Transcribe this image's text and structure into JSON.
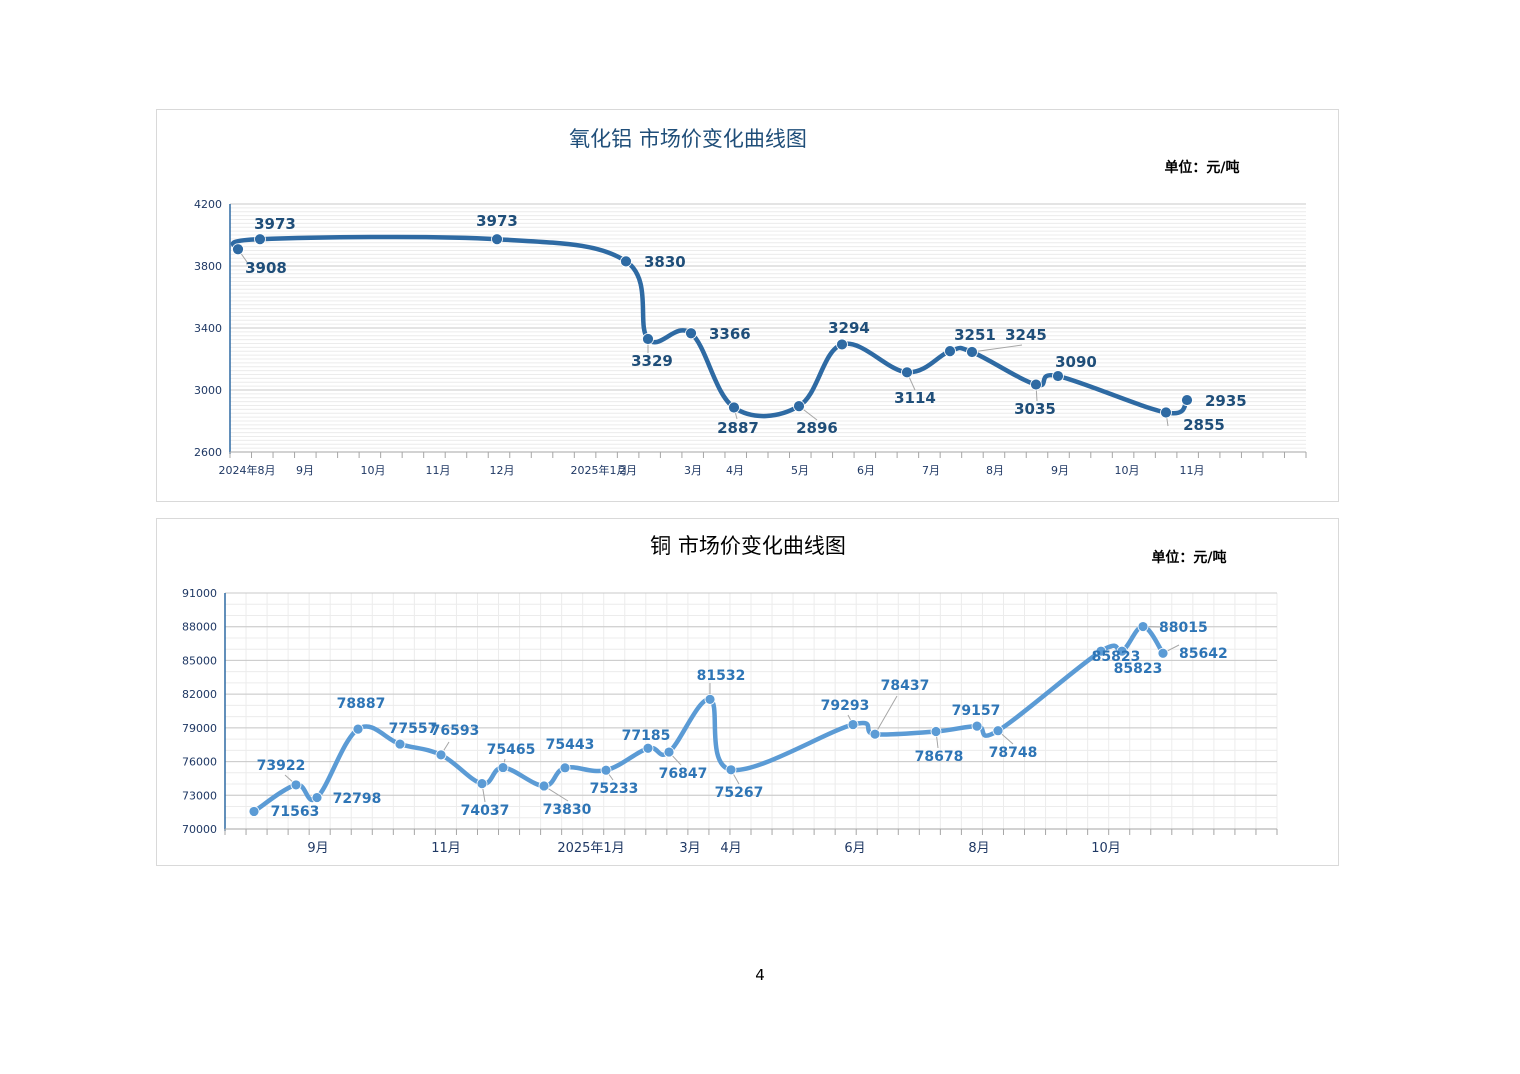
{
  "page_number": "4",
  "chart_data": [
    {
      "type": "line",
      "title": "氧化铝 市场价变化曲线图",
      "unit": "单位：元/吨",
      "ylim": [
        2600,
        4200
      ],
      "yticks": [
        "2600",
        "3000",
        "3400",
        "3800",
        "4200"
      ],
      "xlabels": [
        "2024年8月",
        "9月",
        "10月",
        "11月",
        "12月",
        "2025年1月",
        "2月",
        "3月",
        "4月",
        "5月",
        "6月",
        "7月",
        "8月",
        "9月",
        "10月",
        "11月"
      ],
      "color": "#2e6aa3",
      "label_color": "#1f4e79",
      "values": [
        3908,
        3973,
        3973,
        3830,
        3329,
        3366,
        2887,
        2896,
        3294,
        3114,
        3251,
        3245,
        3035,
        3090,
        2855,
        2935
      ],
      "labels": [
        "3908",
        "3973",
        "3973",
        "3830",
        "3329",
        "3366",
        "2887",
        "2896",
        "3294",
        "3114",
        "3251",
        "3245",
        "3035",
        "3090",
        "2855",
        "2935"
      ]
    },
    {
      "type": "line",
      "title": "铜 市场价变化曲线图",
      "unit": "单位：元/吨",
      "ylim": [
        70000,
        91000
      ],
      "yticks": [
        "70000",
        "73000",
        "76000",
        "79000",
        "82000",
        "85000",
        "88000",
        "91000"
      ],
      "xlabels": [
        "9月",
        "11月",
        "2025年1月",
        "3月",
        "4月",
        "6月",
        "8月",
        "10月"
      ],
      "color": "#5b9bd5",
      "label_color": "#2e75b6",
      "values": [
        71563,
        73922,
        72798,
        78887,
        77557,
        76593,
        74037,
        75465,
        73830,
        75443,
        75233,
        77185,
        76847,
        81532,
        75267,
        79293,
        78437,
        78678,
        79157,
        78748,
        85823,
        85823,
        88015,
        85642
      ],
      "labels": [
        "71563",
        "73922",
        "72798",
        "78887",
        "77557",
        "76593",
        "74037",
        "75465",
        "73830",
        "75443",
        "75233",
        "77185",
        "76847",
        "81532",
        "75267",
        "79293",
        "78437",
        "78678",
        "79157",
        "78748",
        "85823",
        "85823",
        "88015",
        "85642"
      ]
    }
  ]
}
